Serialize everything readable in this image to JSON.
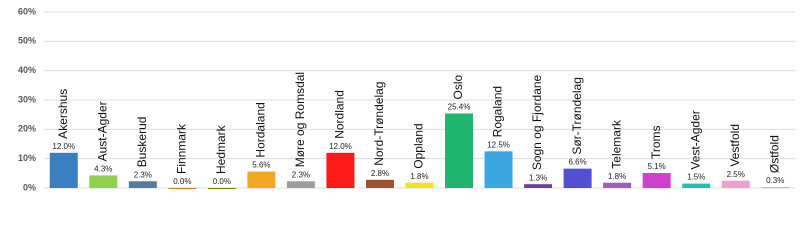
{
  "chart_data": {
    "type": "bar",
    "categories": [
      "Akershus",
      "Aust-Agder",
      "Buskerud",
      "Finnmark",
      "Hedmark",
      "Hordaland",
      "Møre og Romsdal",
      "Nordland",
      "Nord-Trøndelag",
      "Oppland",
      "Oslo",
      "Rogaland",
      "Sogn og Fjordane",
      "Sør-Trøndelag",
      "Telemark",
      "Troms",
      "Vest-Agder",
      "Vestfold",
      "Østfold"
    ],
    "values": [
      12.0,
      4.3,
      2.3,
      0.0,
      0.0,
      5.6,
      2.3,
      12.0,
      2.8,
      1.8,
      25.4,
      12.5,
      1.3,
      6.6,
      1.8,
      5.1,
      1.5,
      2.5,
      0.3
    ],
    "value_labels": [
      "12.0%",
      "4.3%",
      "2.3%",
      "0.0%",
      "0.0%",
      "5.6%",
      "2.3%",
      "12.0%",
      "2.8%",
      "1.8%",
      "25.4%",
      "12.5%",
      "1.3%",
      "6.6%",
      "1.8%",
      "5.1%",
      "1.5%",
      "2.5%",
      "0.3%"
    ],
    "colors": [
      "#3a7fc1",
      "#8fd14f",
      "#5b7a99",
      "#e07020",
      "#808000",
      "#f5a623",
      "#9e9e9e",
      "#ff1a1a",
      "#a0522d",
      "#f5e020",
      "#1fb56f",
      "#3aa7e0",
      "#6a3fa0",
      "#5050d0",
      "#9b5fc0",
      "#d040d0",
      "#20c0b0",
      "#f0a0d0",
      "#d0a0e0"
    ],
    "ylim": [
      0,
      60
    ],
    "yticks": [
      {
        "value": 0,
        "label": "0%"
      },
      {
        "value": 10,
        "label": "10%"
      },
      {
        "value": 20,
        "label": "20%"
      },
      {
        "value": 30,
        "label": "30%"
      },
      {
        "value": 40,
        "label": "40%"
      },
      {
        "value": 50,
        "label": "50%"
      },
      {
        "value": 60,
        "label": "60%"
      }
    ],
    "grid": true
  }
}
